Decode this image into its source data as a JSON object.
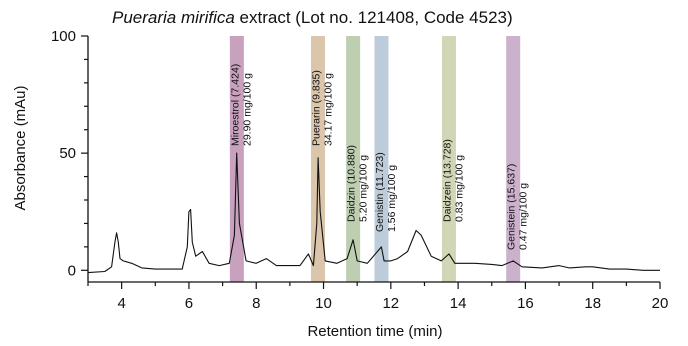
{
  "chart_data": {
    "type": "line",
    "title": {
      "italic_part": "Pueraria mirifica",
      "rest": " extract (Lot no. 121408, Code 4523)"
    },
    "xlabel": "Retention time (min)",
    "ylabel": "Absorbance (mAu)",
    "xlim": [
      3,
      20
    ],
    "ylim": [
      -5,
      100
    ],
    "x_ticks": [
      4,
      6,
      8,
      10,
      12,
      14,
      16,
      18,
      20
    ],
    "y_ticks": [
      0,
      50,
      100
    ],
    "grid": false,
    "legend": "none",
    "series": [
      {
        "values_xy": [
          [
            3.0,
            -1.0
          ],
          [
            3.5,
            -0.5
          ],
          [
            3.7,
            1.5
          ],
          [
            3.8,
            12
          ],
          [
            3.85,
            16
          ],
          [
            3.9,
            12
          ],
          [
            3.95,
            5
          ],
          [
            4.05,
            4
          ],
          [
            4.3,
            3
          ],
          [
            4.6,
            1
          ],
          [
            5.0,
            0.5
          ],
          [
            5.5,
            0.5
          ],
          [
            5.8,
            0.5
          ],
          [
            5.95,
            10
          ],
          [
            6.0,
            25
          ],
          [
            6.05,
            26
          ],
          [
            6.1,
            12
          ],
          [
            6.2,
            6
          ],
          [
            6.4,
            8
          ],
          [
            6.6,
            3
          ],
          [
            6.9,
            2
          ],
          [
            7.2,
            3
          ],
          [
            7.35,
            15
          ],
          [
            7.42,
            50
          ],
          [
            7.5,
            20
          ],
          [
            7.7,
            4
          ],
          [
            8.0,
            3
          ],
          [
            8.3,
            5
          ],
          [
            8.6,
            2
          ],
          [
            9.0,
            2
          ],
          [
            9.3,
            2
          ],
          [
            9.55,
            7
          ],
          [
            9.7,
            2
          ],
          [
            9.8,
            20
          ],
          [
            9.84,
            48
          ],
          [
            9.9,
            25
          ],
          [
            10.05,
            4
          ],
          [
            10.4,
            3
          ],
          [
            10.7,
            5
          ],
          [
            10.88,
            13
          ],
          [
            11.0,
            4
          ],
          [
            11.3,
            3
          ],
          [
            11.72,
            10
          ],
          [
            11.8,
            4
          ],
          [
            12.0,
            4
          ],
          [
            12.2,
            5
          ],
          [
            12.5,
            8
          ],
          [
            12.75,
            17
          ],
          [
            12.9,
            15
          ],
          [
            13.2,
            6
          ],
          [
            13.5,
            4
          ],
          [
            13.73,
            7
          ],
          [
            13.9,
            3
          ],
          [
            14.5,
            3
          ],
          [
            15.0,
            2.5
          ],
          [
            15.3,
            2
          ],
          [
            15.64,
            4
          ],
          [
            15.9,
            1.5
          ],
          [
            16.5,
            1
          ],
          [
            17.0,
            2
          ],
          [
            17.3,
            1
          ],
          [
            17.8,
            1.5
          ],
          [
            18.0,
            1.5
          ],
          [
            18.5,
            0.5
          ],
          [
            19.0,
            0.5
          ],
          [
            19.5,
            0
          ],
          [
            20.0,
            0
          ]
        ]
      }
    ],
    "peaks": [
      {
        "rt": 7.424,
        "color": "#c297b8",
        "name_label": "Miroestrol (7.424)",
        "amount_label": "29.90 mg/100 g"
      },
      {
        "rt": 9.835,
        "color": "#d7bfa2",
        "name_label": "Puerarin (9.835)",
        "amount_label": "34.17 mg/100 g"
      },
      {
        "rt": 10.88,
        "color": "#b7c9a9",
        "name_label": "Daidzin (10.880)",
        "amount_label": "5.20 mg/100 g"
      },
      {
        "rt": 11.723,
        "color": "#b6c6d6",
        "name_label": "Genistin (11.723)",
        "amount_label": "1.56 mg/100 g"
      },
      {
        "rt": 13.728,
        "color": "#cdd2ae",
        "name_label": "Daidzein (13.728)",
        "amount_label": "0.83 mg/100 g"
      },
      {
        "rt": 15.637,
        "color": "#c6a8c6",
        "name_label": "Genistein (15.637)",
        "amount_label": "0.47 mg/100 g"
      }
    ]
  }
}
